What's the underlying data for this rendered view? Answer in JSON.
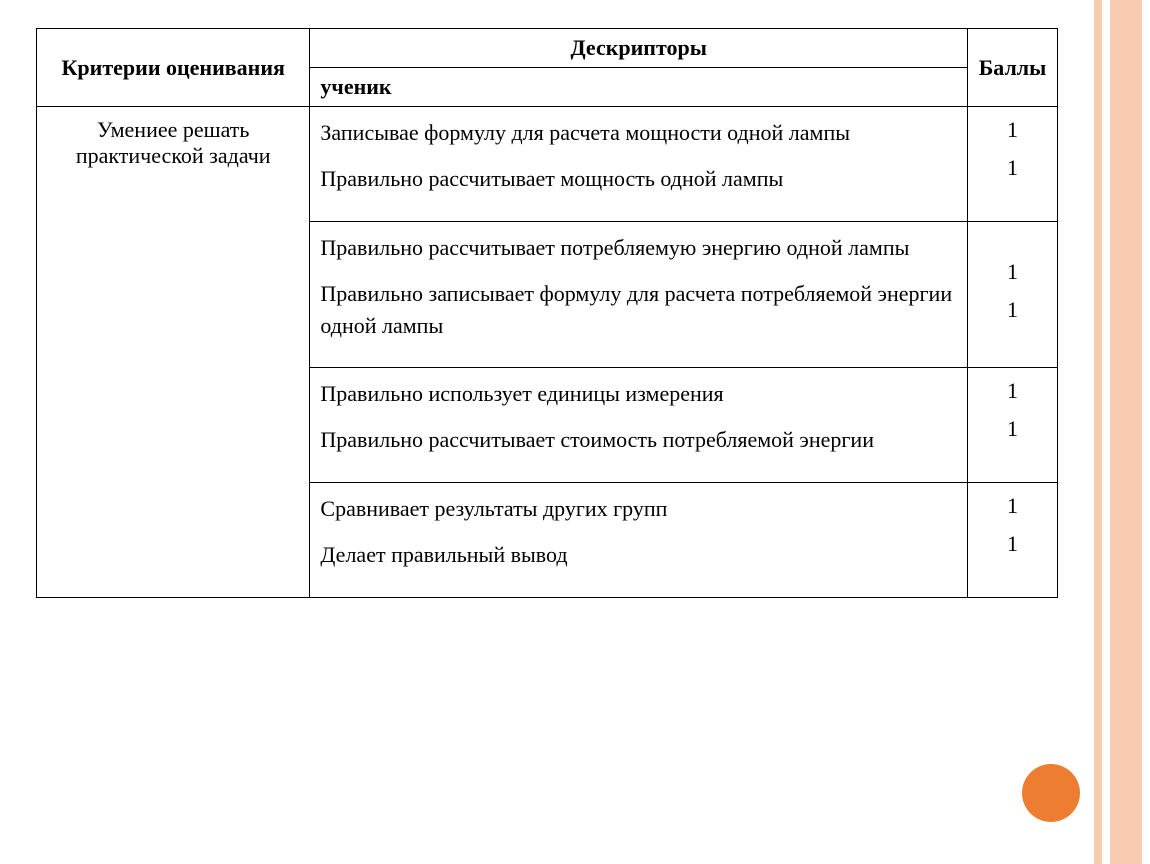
{
  "table": {
    "header": {
      "criteria": "Критерии оценивания",
      "descriptor_top": "Дескрипторы",
      "descriptor_sub": "ученик",
      "points": "Баллы"
    },
    "criteria_text": "Умениее решать практической задачи",
    "rows": [
      {
        "descriptors": [
          "Записывае формулу для расчета мощности одной лампы",
          "Правильно рассчитывает мощность одной лампы"
        ],
        "points": [
          "1",
          "1"
        ]
      },
      {
        "descriptors": [
          "Правильно рассчитывает потребляемую энергию одной лампы",
          "Правильно записывает формулу  для расчета потребляемой энергии одной лампы"
        ],
        "points": [
          "1",
          "1"
        ]
      },
      {
        "descriptors": [
          "Правильно использует единицы измерения",
          "Правильно рассчитывает стоимость потребляемой энергии"
        ],
        "points": [
          "1",
          "1"
        ]
      },
      {
        "descriptors": [
          "Сравнивает результаты  других групп",
          "Делает правильный вывод"
        ],
        "points": [
          "1",
          "1"
        ]
      }
    ]
  },
  "colors": {
    "stripe": "#f8ccb0",
    "circle": "#ed7d31",
    "border": "#000000",
    "text": "#000000",
    "background": "#ffffff"
  }
}
